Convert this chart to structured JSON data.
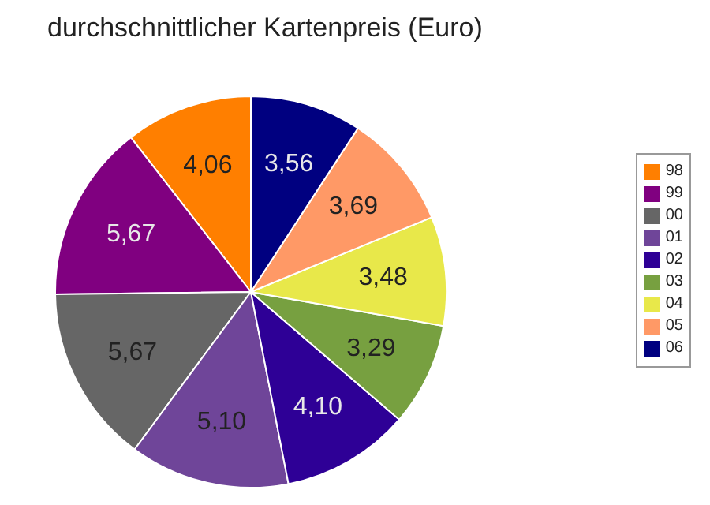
{
  "chart_data": {
    "type": "pie",
    "title": "durchschnittlicher Kartenpreis (Euro)",
    "categories": [
      "98",
      "99",
      "00",
      "01",
      "02",
      "03",
      "04",
      "05",
      "06"
    ],
    "values": [
      4.06,
      5.67,
      5.67,
      5.1,
      4.1,
      3.29,
      3.48,
      3.69,
      3.56
    ],
    "value_labels": [
      "4,06",
      "5,67",
      "5,67",
      "5,10",
      "4,10",
      "3,29",
      "3,48",
      "3,69",
      "3,56"
    ],
    "colors": [
      "#ff7f00",
      "#800080",
      "#666666",
      "#6f4599",
      "#2e0096",
      "#77a040",
      "#e8e84a",
      "#ff9966",
      "#000080"
    ],
    "legend": "right"
  }
}
